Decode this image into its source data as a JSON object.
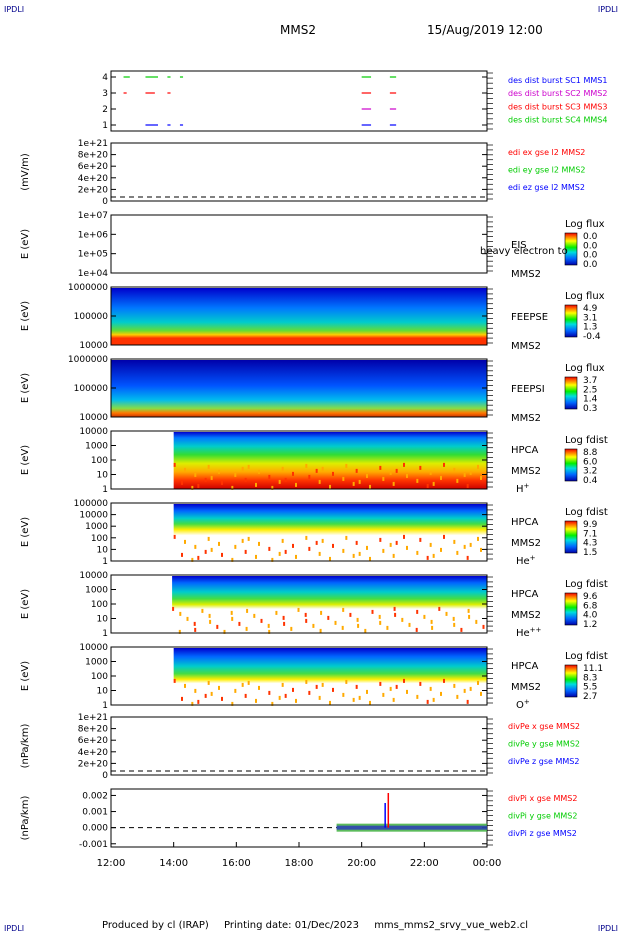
{
  "corners": {
    "tl": "IPDLI",
    "tr": "IPDLI",
    "bl": "IPDLI",
    "br": "IPDLI"
  },
  "header": {
    "spacecraft": "MMS2",
    "datetime": "15/Aug/2019 12:00"
  },
  "footer": {
    "produced_by": "Produced by cl (IRAP)",
    "printing_date": "Printing date: 01/Dec/2023",
    "script": "mms_mms2_srvy_vue_web2.cl"
  },
  "colors": {
    "blue": "#0000ff",
    "red": "#ff0000",
    "green": "#00cc00",
    "magenta": "#cc00cc",
    "darkblue": "#00008b"
  },
  "chart_data": [
    {
      "id": "burst",
      "type": "line",
      "yticks": [
        "1",
        "2",
        "3",
        "4"
      ],
      "legend": [
        {
          "label": "des dist burst SC1 MMS1",
          "color": "#0000ff"
        },
        {
          "label": "des dist burst SC2 MMS2",
          "color": "#cc00cc"
        },
        {
          "label": "des dist burst SC3 MMS3",
          "color": "#ff0000"
        },
        {
          "label": "des dist burst SC4 MMS4",
          "color": "#00cc00"
        }
      ],
      "series": [
        {
          "y": 4,
          "color": "#00cc00",
          "segments": [
            [
              12.4,
              12.6
            ],
            [
              13.1,
              13.5
            ],
            [
              13.8,
              13.9
            ],
            [
              14.2,
              14.3
            ],
            [
              20.0,
              20.3
            ],
            [
              20.9,
              21.1
            ]
          ]
        },
        {
          "y": 3,
          "color": "#ff0000",
          "segments": [
            [
              12.4,
              12.5
            ],
            [
              13.1,
              13.4
            ],
            [
              13.8,
              13.9
            ],
            [
              20.0,
              20.3
            ],
            [
              20.9,
              21.1
            ]
          ]
        },
        {
          "y": 2,
          "color": "#cc00cc",
          "segments": [
            [
              20.0,
              20.3
            ],
            [
              20.9,
              21.1
            ]
          ]
        },
        {
          "y": 1,
          "color": "#0000ff",
          "segments": [
            [
              13.1,
              13.5
            ],
            [
              13.8,
              13.9
            ],
            [
              14.2,
              14.3
            ],
            [
              20.0,
              20.3
            ],
            [
              20.9,
              21.1
            ]
          ]
        }
      ]
    },
    {
      "id": "edi",
      "type": "line",
      "ylabel": "(mV/m)",
      "yticks": [
        "0",
        "2e+20",
        "4e+20",
        "6e+20",
        "8e+20",
        "1e+21"
      ],
      "legend": [
        {
          "label": "edi ex gse l2 MMS2",
          "color": "#ff0000"
        },
        {
          "label": "edi ey gse l2 MMS2",
          "color": "#00cc00"
        },
        {
          "label": "edi ez gse l2 MMS2",
          "color": "#0000ff"
        }
      ]
    },
    {
      "id": "eis",
      "type": "heatmap",
      "ylabel": "E (eV)",
      "yticks": [
        "1e+04",
        "1e+05",
        "1e+06",
        "1e+07"
      ],
      "label1": "EIS",
      "label2": "MMS2",
      "overlay": "heavy electron to",
      "cbar_title": "Log flux",
      "cbar_ticks": [
        "0.0",
        "0.0",
        "0.0",
        "0.0"
      ]
    },
    {
      "id": "feepse",
      "type": "heatmap",
      "ylabel": "E (eV)",
      "yticks": [
        "10000",
        "100000",
        "1000000"
      ],
      "label1": "FEEPSE",
      "label2": "MMS2",
      "cbar_title": "Log flux",
      "cbar_ticks": [
        "4.9",
        "3.1",
        "1.3",
        "-0.4"
      ]
    },
    {
      "id": "feepsi",
      "type": "heatmap",
      "ylabel": "E (eV)",
      "yticks": [
        "10000",
        "100000",
        "1000000"
      ],
      "label1": "FEEPSI",
      "label2": "MMS2",
      "cbar_title": "Log flux",
      "cbar_ticks": [
        "3.7",
        "2.5",
        "1.4",
        "0.3"
      ]
    },
    {
      "id": "hpca_h",
      "type": "heatmap",
      "ylabel": "E (eV)",
      "yticks": [
        "1",
        "10",
        "100",
        "1000",
        "10000"
      ],
      "label1": "HPCA",
      "label2": "MMS2",
      "species": "H",
      "charge": "+",
      "cbar_title": "Log fdist",
      "cbar_ticks": [
        "8.8",
        "6.0",
        "3.2",
        "0.4"
      ]
    },
    {
      "id": "hpca_he",
      "type": "heatmap",
      "ylabel": "E (eV)",
      "yticks": [
        "1",
        "10",
        "100",
        "1000",
        "10000",
        "100000"
      ],
      "label1": "HPCA",
      "label2": "MMS2",
      "species": "He",
      "charge": "+",
      "cbar_title": "Log fdist",
      "cbar_ticks": [
        "9.9",
        "7.1",
        "4.3",
        "1.5"
      ]
    },
    {
      "id": "hpca_he2",
      "type": "heatmap",
      "ylabel": "E (eV)",
      "yticks": [
        "1",
        "10",
        "100",
        "1000",
        "10000"
      ],
      "label1": "HPCA",
      "label2": "MMS2",
      "species": "He",
      "charge": "++",
      "cbar_title": "Log fdist",
      "cbar_ticks": [
        "9.6",
        "6.8",
        "4.0",
        "1.2"
      ]
    },
    {
      "id": "hpca_o",
      "type": "heatmap",
      "ylabel": "E (eV)",
      "yticks": [
        "1",
        "10",
        "100",
        "1000",
        "10000"
      ],
      "label1": "HPCA",
      "label2": "MMS2",
      "species": "O",
      "charge": "+",
      "cbar_title": "Log fdist",
      "cbar_ticks": [
        "11.1",
        "8.3",
        "5.5",
        "2.7"
      ]
    },
    {
      "id": "divpe",
      "type": "line",
      "ylabel": "(nPa/km)",
      "yticks": [
        "0",
        "2e+20",
        "4e+20",
        "6e+20",
        "8e+20",
        "1e+21"
      ],
      "legend": [
        {
          "label": "divPe x gse MMS2",
          "color": "#ff0000"
        },
        {
          "label": "divPe y gse MMS2",
          "color": "#00cc00"
        },
        {
          "label": "divPe z gse MMS2",
          "color": "#0000ff"
        }
      ]
    },
    {
      "id": "divpi",
      "type": "line",
      "ylabel": "(nPa/km)",
      "yticks": [
        "-0.001",
        "0.000",
        "0.001",
        "0.002"
      ],
      "ylim": [
        -0.0012,
        0.0024
      ],
      "legend": [
        {
          "label": "divPi x gse MMS2",
          "color": "#ff0000"
        },
        {
          "label": "divPi y gse MMS2",
          "color": "#00cc00"
        },
        {
          "label": "divPi z gse MMS2",
          "color": "#0000ff"
        }
      ]
    }
  ],
  "xaxis": {
    "ticks": [
      "12:00",
      "14:00",
      "16:00",
      "18:00",
      "20:00",
      "22:00",
      "00:00"
    ],
    "range_hours": [
      12,
      24
    ]
  }
}
